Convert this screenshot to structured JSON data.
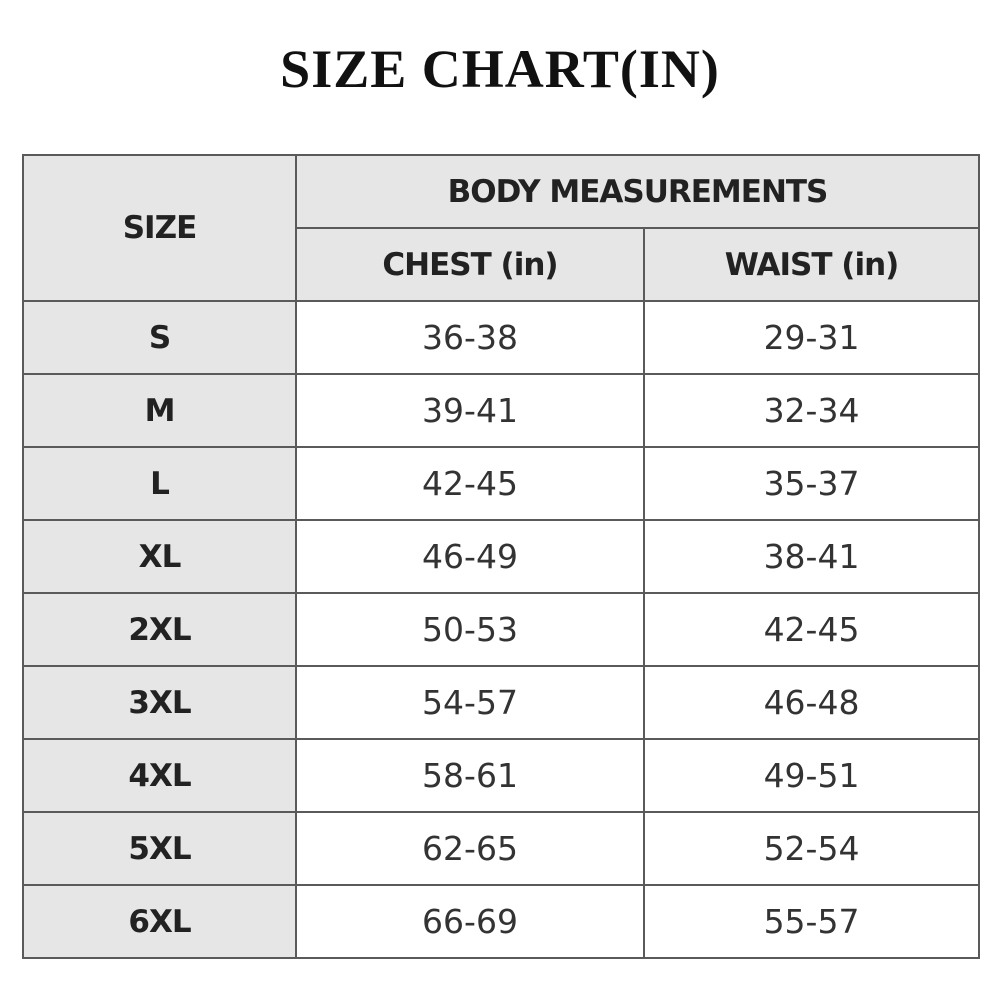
{
  "header": {
    "title": "SIZE CHART(IN)"
  },
  "table": {
    "size_header": "SIZE",
    "group_header": "BODY MEASUREMENTS",
    "columns": [
      "CHEST (in)",
      "WAIST (in)"
    ],
    "rows": [
      [
        "S",
        "36-38",
        "29-31"
      ],
      [
        "M",
        "39-41",
        "32-34"
      ],
      [
        "L",
        "42-45",
        "35-37"
      ],
      [
        "XL",
        "46-49",
        "38-41"
      ],
      [
        "2XL",
        "50-53",
        "42-45"
      ],
      [
        "3XL",
        "54-57",
        "46-48"
      ],
      [
        "4XL",
        "58-61",
        "49-51"
      ],
      [
        "5XL",
        "62-65",
        "52-54"
      ],
      [
        "6XL",
        "66-69",
        "55-57"
      ]
    ]
  }
}
